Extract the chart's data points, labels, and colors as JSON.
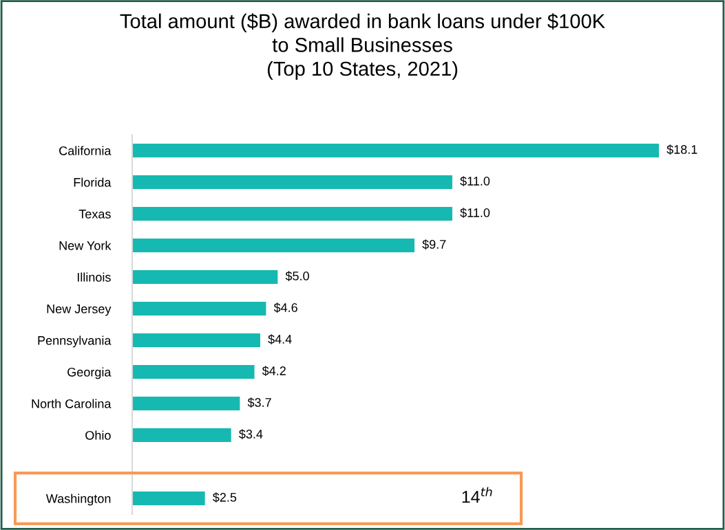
{
  "chart_data": {
    "type": "bar",
    "orientation": "horizontal",
    "title": "Total amount ($B) awarded in bank loans under $100K\nto Small Businesses\n(Top 10 States, 2021)",
    "categories": [
      "California",
      "Florida",
      "Texas",
      "New York",
      "Illinois",
      "New Jersey",
      "Pennsylvania",
      "Georgia",
      "North Carolina",
      "Ohio",
      null,
      "Washington"
    ],
    "values": [
      18.1,
      11.0,
      11.0,
      9.7,
      5.0,
      4.6,
      4.4,
      4.2,
      3.7,
      3.4,
      null,
      2.5
    ],
    "value_labels": [
      "$18.1",
      "$11.0",
      "$11.0",
      "$9.7",
      "$5.0",
      "$4.6",
      "$4.4",
      "$4.2",
      "$3.7",
      "$3.4",
      null,
      "$2.5"
    ],
    "color": "#16b9b1",
    "annotations": [
      "14$^{th}$"
    ],
    "grid": false,
    "legend": false
  }
}
